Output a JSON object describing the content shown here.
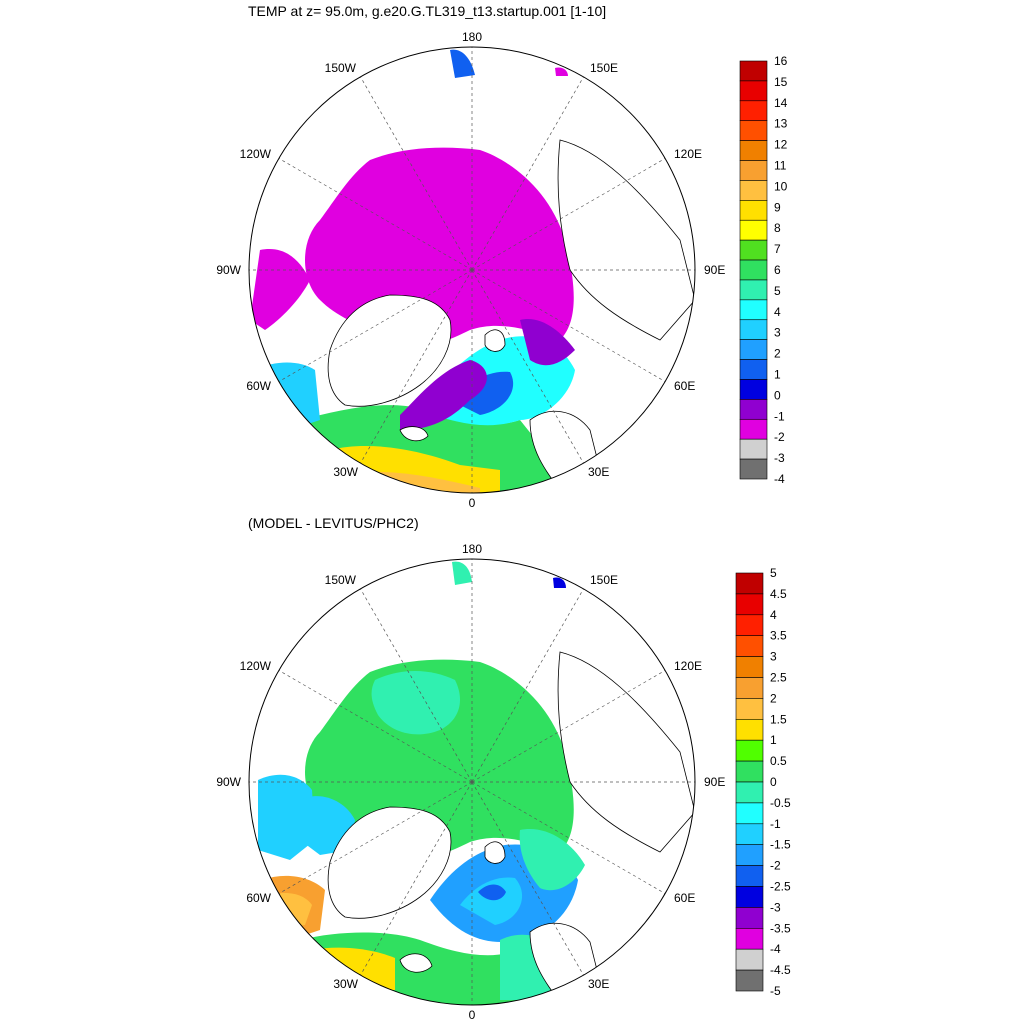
{
  "panels": [
    {
      "title": "TEMP at z=  95.0m, g.e20.G.TL319_t13.startup.001 [1-10]",
      "lon_labels": {
        "top": "180",
        "bottom": "0",
        "left": "90W",
        "right": "90E",
        "upper_left": "150W",
        "upper_right": "150E",
        "mid_upper_left": "120W",
        "mid_upper_right": "120E",
        "mid_lower_left": "60W",
        "mid_lower_right": "60E",
        "lower_left": "30W",
        "lower_right": "30E"
      },
      "colorbar": {
        "labels": [
          "16",
          "15",
          "14",
          "13",
          "12",
          "11",
          "10",
          "9",
          "8",
          "7",
          "6",
          "5",
          "4",
          "3",
          "2",
          "1",
          "0",
          "-1",
          "-2",
          "-3",
          "-4"
        ],
        "colors": [
          "#c00000",
          "#e80000",
          "#ff2000",
          "#ff5000",
          "#f08000",
          "#f8a030",
          "#ffc040",
          "#ffe000",
          "#ffff00",
          "#50e020",
          "#30e060",
          "#30f0b0",
          "#20ffff",
          "#20d0ff",
          "#20a0ff",
          "#1060f0",
          "#0000e0",
          "#9000d0",
          "#e000e0",
          "#d0d0d0",
          "#707070"
        ]
      }
    },
    {
      "title": "(MODEL - LEVITUS/PHC2)",
      "lon_labels": {
        "top": "180",
        "bottom": "0",
        "left": "90W",
        "right": "90E",
        "upper_left": "150W",
        "upper_right": "150E",
        "mid_upper_left": "120W",
        "mid_upper_right": "120E",
        "mid_lower_left": "60W",
        "mid_lower_right": "60E",
        "lower_left": "30W",
        "lower_right": "30E"
      },
      "colorbar": {
        "labels": [
          "5",
          "4.5",
          "4",
          "3.5",
          "3",
          "2.5",
          "2",
          "1.5",
          "1",
          "0.5",
          "0",
          "-0.5",
          "-1",
          "-1.5",
          "-2",
          "-2.5",
          "-3",
          "-3.5",
          "-4",
          "-4.5",
          "-5"
        ],
        "colors": [
          "#c00000",
          "#e80000",
          "#ff2000",
          "#ff5000",
          "#f08000",
          "#f8a030",
          "#ffc040",
          "#ffe000",
          "#50ff00",
          "#30e060",
          "#30f0b0",
          "#20ffff",
          "#20d0ff",
          "#20a0ff",
          "#1060f0",
          "#0000e0",
          "#9000d0",
          "#e000e0",
          "#d0d0d0",
          "#707070"
        ]
      }
    }
  ]
}
